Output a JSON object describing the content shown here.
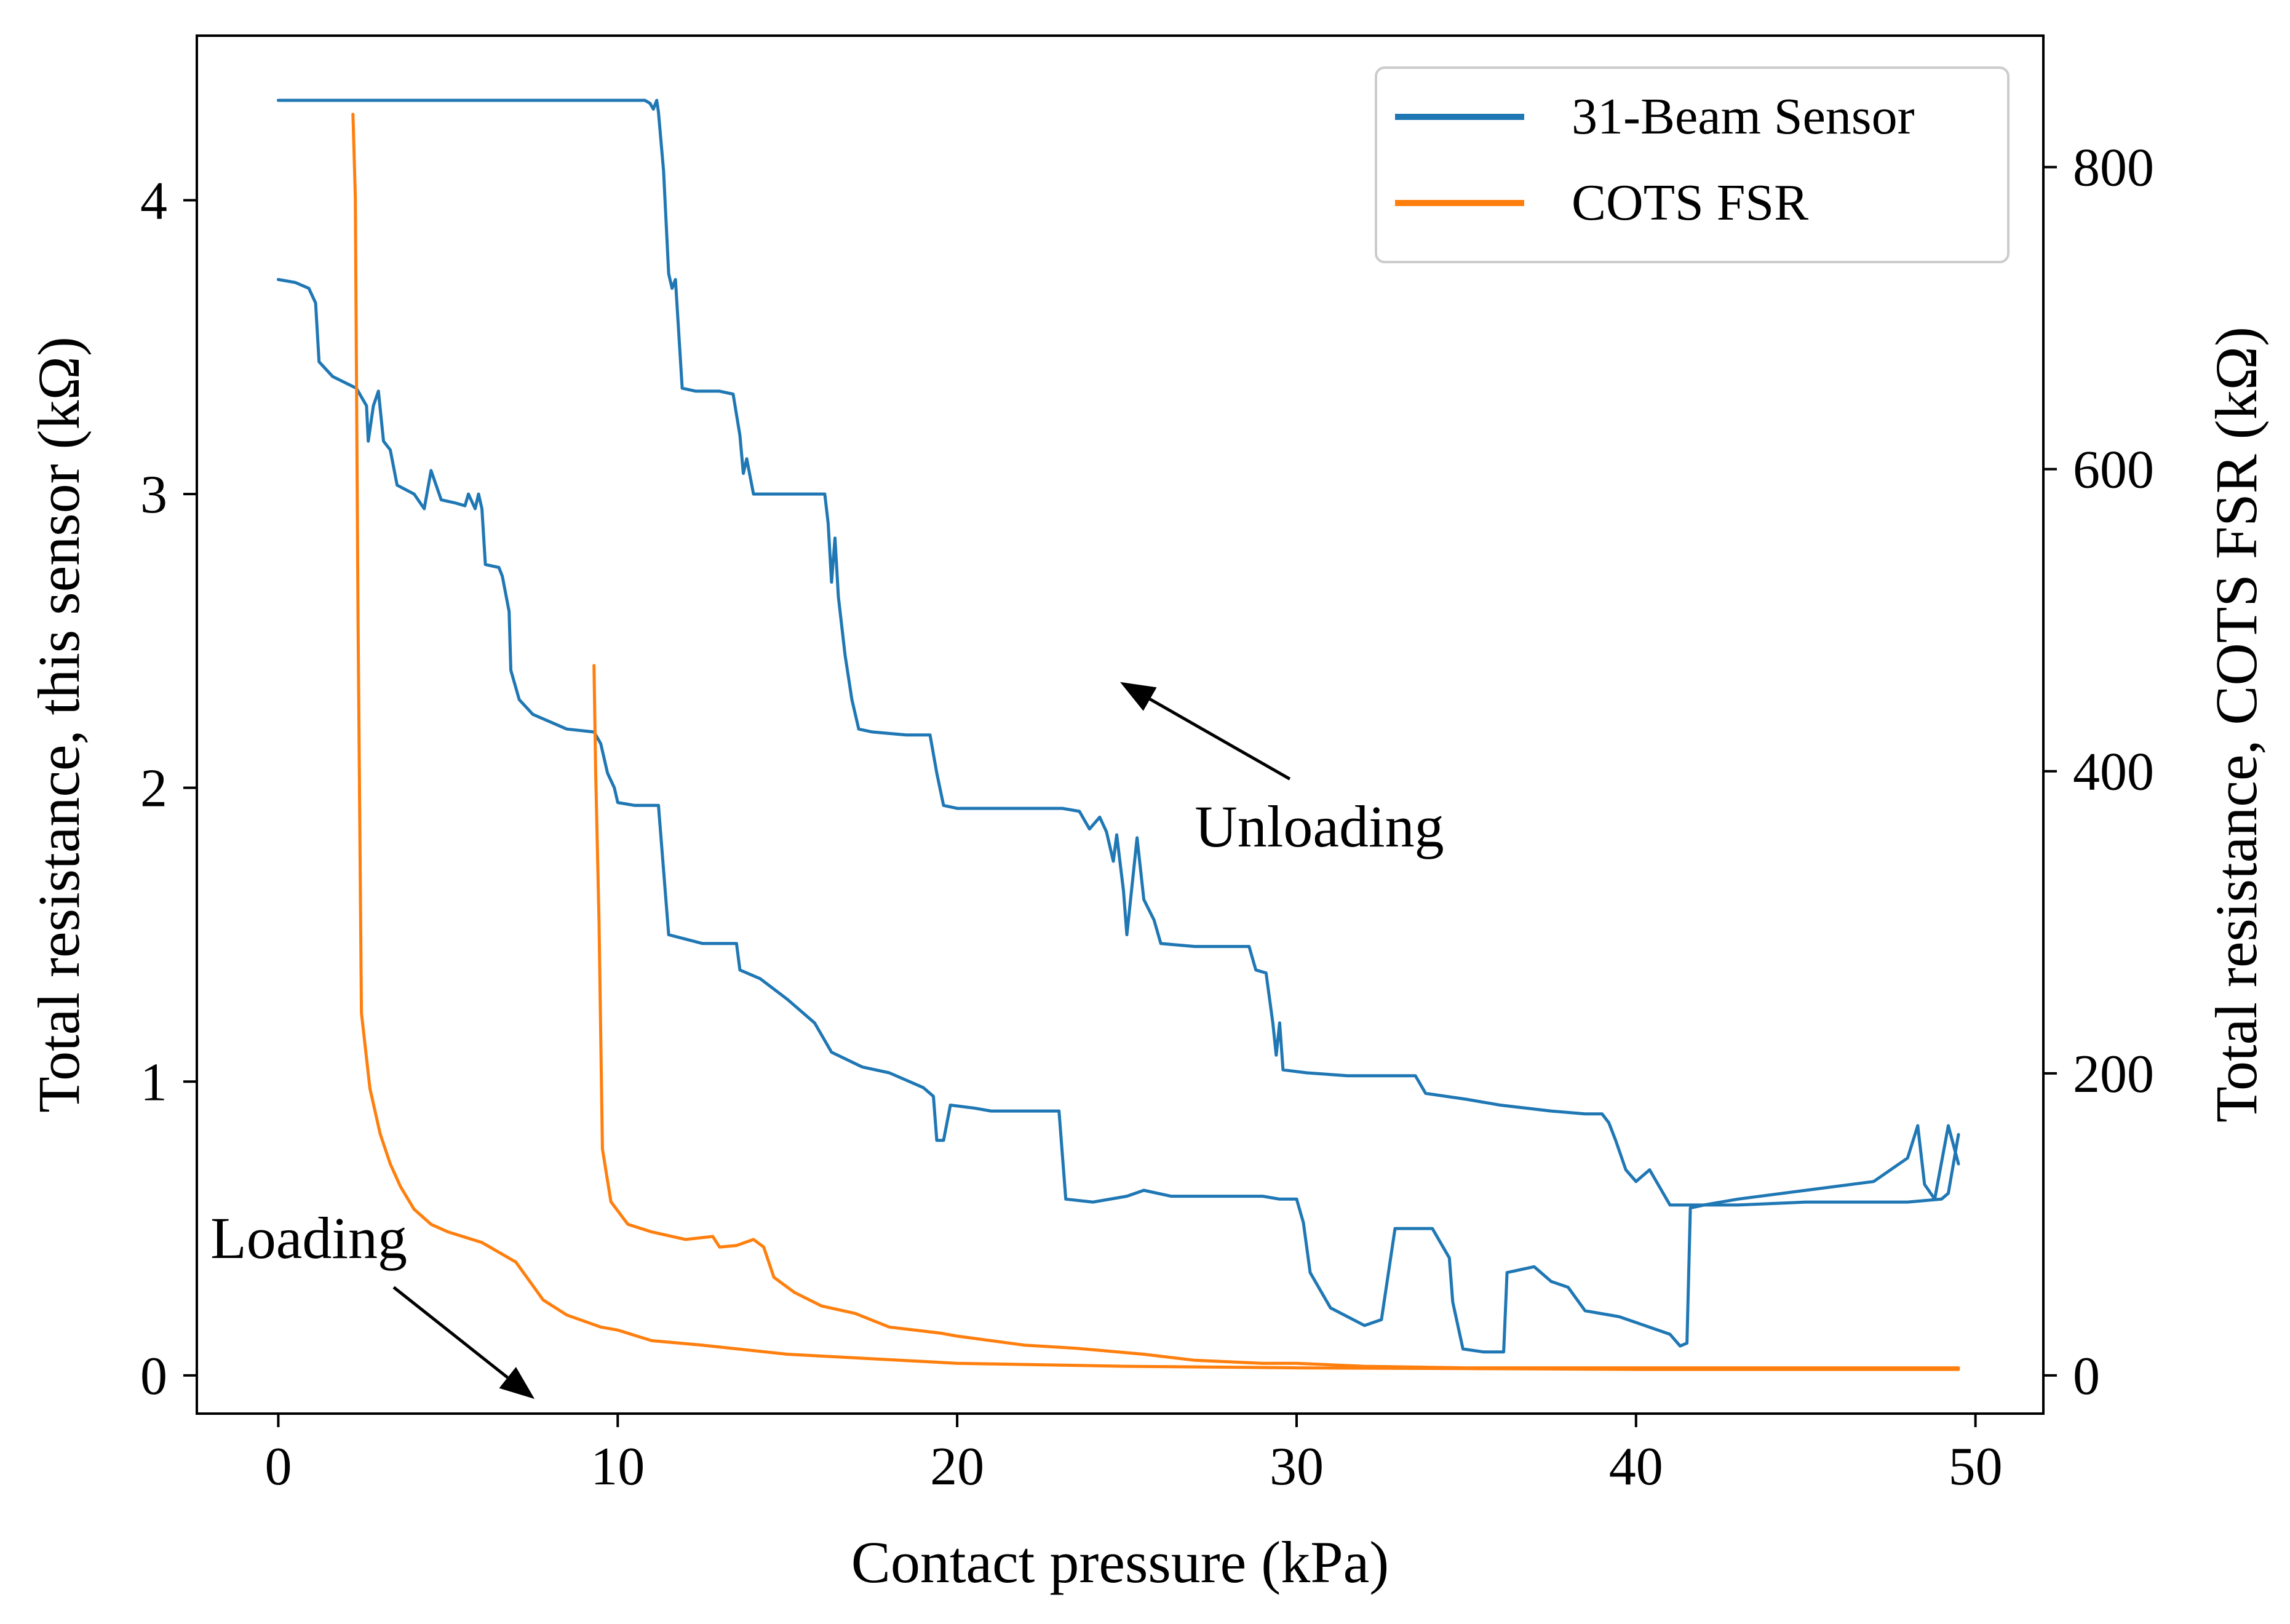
{
  "chart_data": {
    "type": "line",
    "xlabel": "Contact pressure (kPa)",
    "ylabel_left": "Total resistance, this sensor (kΩ)",
    "ylabel_right": "Total resistance, COTS FSR (kΩ)",
    "xlim": [
      -2.4,
      52
    ],
    "ylim_left": [
      -0.13,
      4.56
    ],
    "ylim_right": [
      -25.3,
      887
    ],
    "x_ticks": [
      0,
      10,
      20,
      30,
      40,
      50
    ],
    "y_ticks_left": [
      0,
      1,
      2,
      3,
      4
    ],
    "y_ticks_right": [
      0,
      200,
      400,
      600,
      800
    ],
    "grid": false,
    "legend_position": "top-right",
    "series": [
      {
        "name": "31-Beam Sensor",
        "axis": "left",
        "color": "#1f77b4",
        "segments": [
          {
            "label": "loading",
            "points": [
              [
                0,
                3.73
              ],
              [
                0.5,
                3.72
              ],
              [
                0.9,
                3.7
              ],
              [
                1.1,
                3.65
              ],
              [
                1.2,
                3.45
              ],
              [
                1.6,
                3.4
              ],
              [
                2.3,
                3.36
              ],
              [
                2.6,
                3.3
              ],
              [
                2.65,
                3.18
              ],
              [
                2.8,
                3.3
              ],
              [
                2.95,
                3.35
              ],
              [
                3.1,
                3.18
              ],
              [
                3.3,
                3.15
              ],
              [
                3.5,
                3.03
              ],
              [
                4.0,
                3.0
              ],
              [
                4.3,
                2.95
              ],
              [
                4.5,
                3.08
              ],
              [
                4.8,
                2.98
              ],
              [
                5.2,
                2.97
              ],
              [
                5.5,
                2.96
              ],
              [
                5.6,
                3.0
              ],
              [
                5.8,
                2.95
              ],
              [
                5.9,
                3.0
              ],
              [
                6.0,
                2.95
              ],
              [
                6.1,
                2.76
              ],
              [
                6.5,
                2.75
              ],
              [
                6.6,
                2.72
              ],
              [
                6.8,
                2.6
              ],
              [
                6.85,
                2.4
              ],
              [
                7.1,
                2.3
              ],
              [
                7.5,
                2.25
              ],
              [
                8.5,
                2.2
              ],
              [
                9.3,
                2.19
              ],
              [
                9.5,
                2.15
              ],
              [
                9.7,
                2.05
              ],
              [
                9.9,
                2.0
              ],
              [
                10,
                1.95
              ],
              [
                10.5,
                1.94
              ],
              [
                11.2,
                1.94
              ],
              [
                11.5,
                1.5
              ],
              [
                12.5,
                1.47
              ],
              [
                13.5,
                1.47
              ],
              [
                13.6,
                1.38
              ],
              [
                14.2,
                1.35
              ],
              [
                15,
                1.28
              ],
              [
                15.8,
                1.2
              ],
              [
                16.3,
                1.1
              ],
              [
                17.2,
                1.05
              ],
              [
                18,
                1.03
              ],
              [
                19,
                0.98
              ],
              [
                19.3,
                0.95
              ],
              [
                19.4,
                0.8
              ],
              [
                19.6,
                0.8
              ],
              [
                19.8,
                0.92
              ],
              [
                20.5,
                0.91
              ],
              [
                21,
                0.9
              ],
              [
                23,
                0.9
              ],
              [
                23.2,
                0.6
              ],
              [
                24,
                0.59
              ],
              [
                25,
                0.61
              ],
              [
                25.5,
                0.63
              ],
              [
                26.3,
                0.61
              ],
              [
                29,
                0.61
              ],
              [
                29.5,
                0.6
              ],
              [
                30,
                0.6
              ],
              [
                30.2,
                0.52
              ],
              [
                30.4,
                0.35
              ],
              [
                31,
                0.23
              ],
              [
                32,
                0.17
              ],
              [
                32.5,
                0.19
              ],
              [
                32.9,
                0.5
              ],
              [
                34,
                0.5
              ],
              [
                34.5,
                0.4
              ],
              [
                34.6,
                0.25
              ],
              [
                34.9,
                0.09
              ],
              [
                35.5,
                0.08
              ],
              [
                36.1,
                0.08
              ],
              [
                36.2,
                0.35
              ],
              [
                37,
                0.37
              ],
              [
                37.5,
                0.32
              ],
              [
                38,
                0.3
              ],
              [
                38.5,
                0.22
              ],
              [
                39,
                0.21
              ],
              [
                39.5,
                0.2
              ],
              [
                40,
                0.18
              ],
              [
                41,
                0.14
              ],
              [
                41.3,
                0.1
              ],
              [
                41.5,
                0.11
              ],
              [
                41.6,
                0.57
              ],
              [
                42,
                0.58
              ],
              [
                43,
                0.58
              ],
              [
                45,
                0.59
              ],
              [
                48,
                0.59
              ],
              [
                49,
                0.6
              ],
              [
                49.2,
                0.62
              ],
              [
                49.5,
                0.82
              ]
            ]
          },
          {
            "label": "unloading",
            "points": [
              [
                0,
                4.34
              ],
              [
                10.8,
                4.34
              ],
              [
                10.95,
                4.33
              ],
              [
                11.05,
                4.31
              ],
              [
                11.15,
                4.34
              ],
              [
                11.2,
                4.3
              ],
              [
                11.35,
                4.1
              ],
              [
                11.5,
                3.75
              ],
              [
                11.6,
                3.7
              ],
              [
                11.7,
                3.73
              ],
              [
                11.9,
                3.36
              ],
              [
                12.3,
                3.35
              ],
              [
                13.0,
                3.35
              ],
              [
                13.4,
                3.34
              ],
              [
                13.6,
                3.2
              ],
              [
                13.7,
                3.07
              ],
              [
                13.8,
                3.12
              ],
              [
                14.0,
                3.0
              ],
              [
                14.5,
                3.0
              ],
              [
                15.2,
                3.0
              ],
              [
                16.1,
                3.0
              ],
              [
                16.2,
                2.9
              ],
              [
                16.3,
                2.7
              ],
              [
                16.4,
                2.85
              ],
              [
                16.5,
                2.65
              ],
              [
                16.7,
                2.45
              ],
              [
                16.9,
                2.3
              ],
              [
                17.1,
                2.2
              ],
              [
                17.5,
                2.19
              ],
              [
                18.5,
                2.18
              ],
              [
                19.2,
                2.18
              ],
              [
                19.4,
                2.05
              ],
              [
                19.6,
                1.94
              ],
              [
                20,
                1.93
              ],
              [
                22,
                1.93
              ],
              [
                23.1,
                1.93
              ],
              [
                23.6,
                1.92
              ],
              [
                23.9,
                1.86
              ],
              [
                24.2,
                1.9
              ],
              [
                24.4,
                1.85
              ],
              [
                24.6,
                1.75
              ],
              [
                24.7,
                1.84
              ],
              [
                24.9,
                1.65
              ],
              [
                25.0,
                1.5
              ],
              [
                25.2,
                1.72
              ],
              [
                25.3,
                1.83
              ],
              [
                25.5,
                1.62
              ],
              [
                25.8,
                1.55
              ],
              [
                26.0,
                1.47
              ],
              [
                27.0,
                1.46
              ],
              [
                28.6,
                1.46
              ],
              [
                28.8,
                1.38
              ],
              [
                29.1,
                1.37
              ],
              [
                29.3,
                1.2
              ],
              [
                29.4,
                1.09
              ],
              [
                29.5,
                1.2
              ],
              [
                29.6,
                1.04
              ],
              [
                30.3,
                1.03
              ],
              [
                31.5,
                1.02
              ],
              [
                33.5,
                1.02
              ],
              [
                33.8,
                0.96
              ],
              [
                35,
                0.94
              ],
              [
                36,
                0.92
              ],
              [
                37.5,
                0.9
              ],
              [
                38.5,
                0.89
              ],
              [
                39.0,
                0.89
              ],
              [
                39.2,
                0.86
              ],
              [
                39.4,
                0.8
              ],
              [
                39.7,
                0.7
              ],
              [
                40.0,
                0.66
              ],
              [
                40.4,
                0.7
              ],
              [
                40.8,
                0.62
              ],
              [
                41.0,
                0.58
              ],
              [
                42,
                0.58
              ],
              [
                43,
                0.6
              ],
              [
                45,
                0.63
              ],
              [
                47,
                0.66
              ],
              [
                48,
                0.74
              ],
              [
                48.3,
                0.85
              ],
              [
                48.5,
                0.65
              ],
              [
                48.8,
                0.6
              ],
              [
                49.2,
                0.85
              ],
              [
                49.5,
                0.72
              ]
            ]
          }
        ]
      },
      {
        "name": "COTS FSR",
        "axis": "right",
        "color": "#ff7f0e",
        "segments": [
          {
            "label": "unloading",
            "points": [
              [
                2.2,
                835
              ],
              [
                2.27,
                780
              ],
              [
                2.35,
                500
              ],
              [
                2.45,
                240
              ],
              [
                2.7,
                190
              ],
              [
                3.0,
                160
              ],
              [
                3.3,
                140
              ],
              [
                3.6,
                125
              ],
              [
                4.0,
                110
              ],
              [
                4.5,
                100
              ],
              [
                5.0,
                95
              ],
              [
                6.0,
                88
              ],
              [
                7.0,
                75
              ],
              [
                7.8,
                50
              ],
              [
                8.5,
                40
              ],
              [
                9.5,
                32
              ],
              [
                10,
                30
              ],
              [
                11,
                23
              ],
              [
                12.5,
                20
              ],
              [
                15,
                14
              ],
              [
                20,
                8
              ],
              [
                25,
                6
              ],
              [
                30,
                5
              ],
              [
                35,
                4.5
              ],
              [
                40,
                4
              ],
              [
                45,
                4
              ],
              [
                49.5,
                4
              ]
            ]
          },
          {
            "label": "loading",
            "points": [
              [
                9.3,
                470
              ],
              [
                9.35,
                400
              ],
              [
                9.45,
                300
              ],
              [
                9.55,
                150
              ],
              [
                9.8,
                115
              ],
              [
                10.3,
                100
              ],
              [
                11,
                95
              ],
              [
                12,
                90
              ],
              [
                12.8,
                92
              ],
              [
                13.0,
                85
              ],
              [
                13.5,
                86
              ],
              [
                14.0,
                90
              ],
              [
                14.3,
                85
              ],
              [
                14.6,
                65
              ],
              [
                15.2,
                55
              ],
              [
                16,
                46
              ],
              [
                17,
                41
              ],
              [
                18,
                32
              ],
              [
                19.5,
                28
              ],
              [
                20,
                26
              ],
              [
                22,
                20
              ],
              [
                23.5,
                18
              ],
              [
                25.5,
                14
              ],
              [
                27,
                10
              ],
              [
                28,
                9
              ],
              [
                29,
                8
              ],
              [
                30,
                8
              ],
              [
                32,
                6
              ],
              [
                35,
                5
              ],
              [
                40,
                5
              ],
              [
                45,
                5
              ],
              [
                49.5,
                5
              ]
            ]
          }
        ]
      }
    ],
    "annotations": [
      {
        "text": "Unloading",
        "text_at": [
          27.0,
          1.8
        ],
        "arrow_from": [
          29.8,
          2.03
        ],
        "arrow_to": [
          24.8,
          2.36
        ]
      },
      {
        "text": "Loading",
        "text_at": [
          -2.0,
          0.4
        ],
        "arrow_from": [
          3.4,
          0.3
        ],
        "arrow_to": [
          7.55,
          -0.08
        ]
      }
    ]
  }
}
